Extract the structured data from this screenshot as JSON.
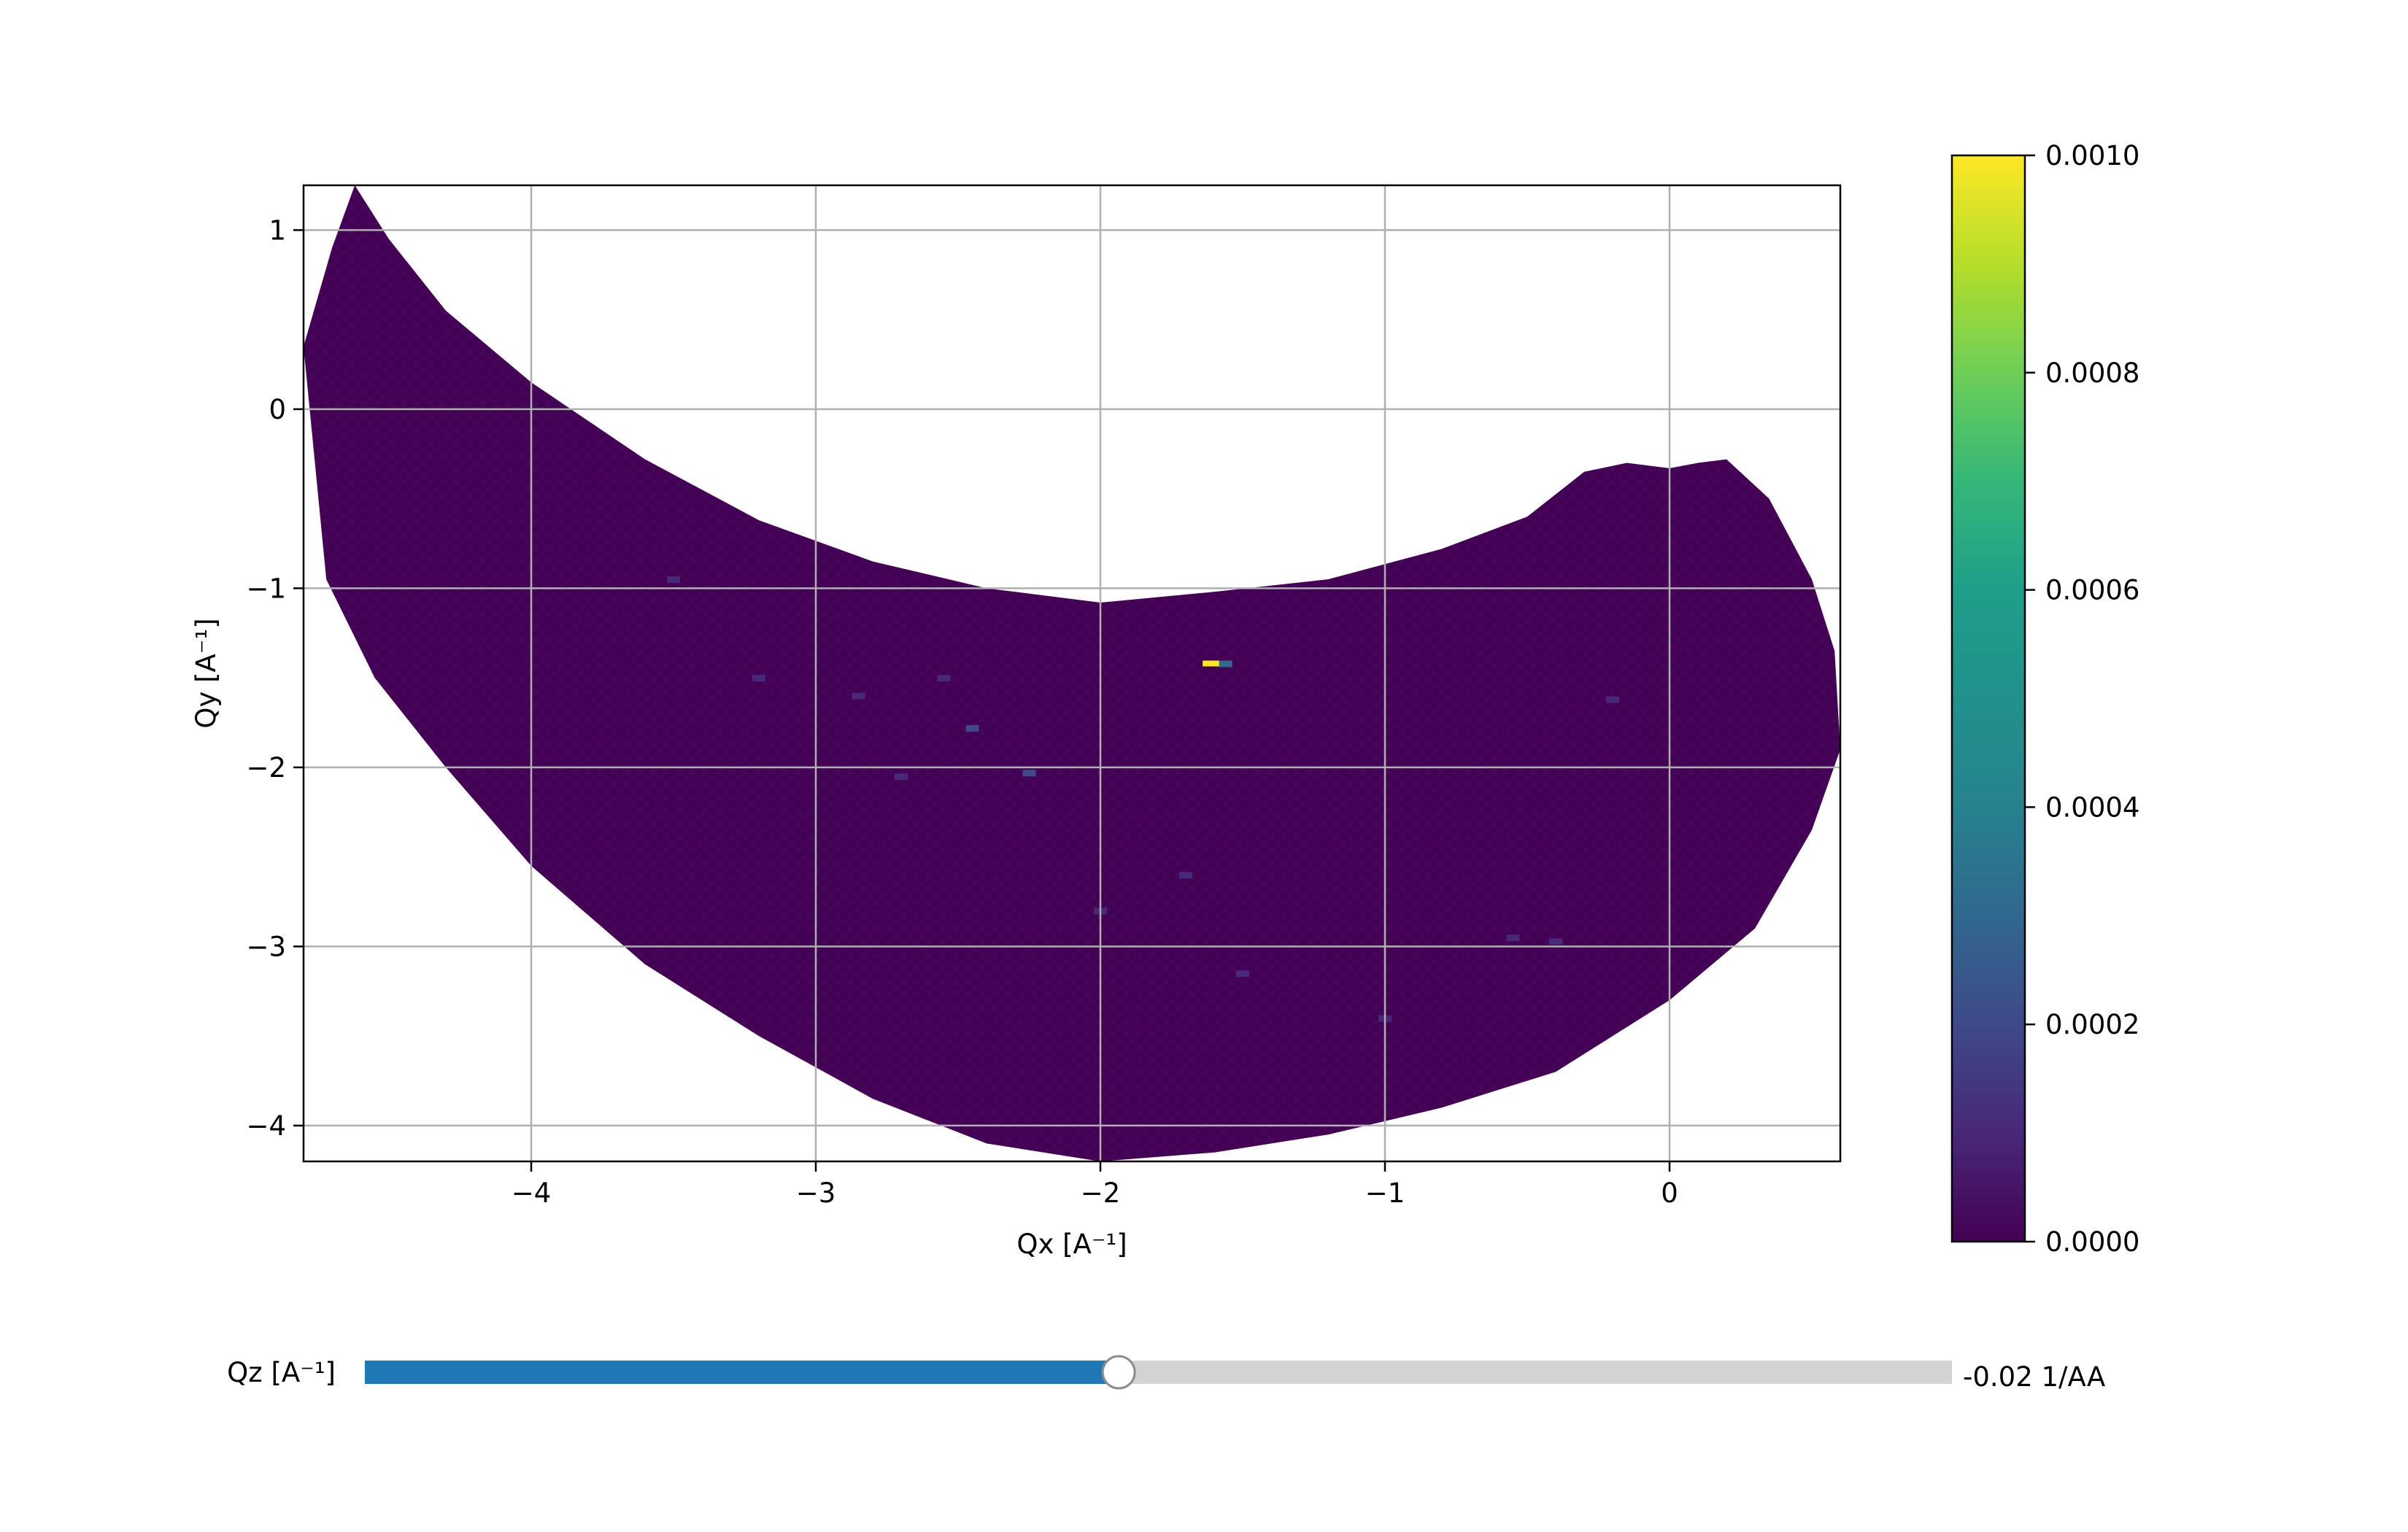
{
  "chart_data": {
    "type": "heatmap",
    "title": "",
    "xlabel": "Qx [A⁻¹]",
    "ylabel": "Qy [A⁻¹]",
    "xlim": [
      -4.8,
      0.6
    ],
    "ylim": [
      -4.2,
      1.25
    ],
    "x_ticks": [
      -4,
      -3,
      -2,
      -1,
      0
    ],
    "x_tick_labels": [
      "−4",
      "−3",
      "−2",
      "−1",
      "0"
    ],
    "y_ticks": [
      1,
      0,
      -1,
      -2,
      -3,
      -4
    ],
    "y_tick_labels": [
      "1",
      "0",
      "−1",
      "−2",
      "−3",
      "−4"
    ],
    "grid": true,
    "colormap": "viridis",
    "colorbar": {
      "range": [
        0.0,
        0.001
      ],
      "ticks": [
        0.0,
        0.0002,
        0.0004,
        0.0006,
        0.0008,
        0.001
      ],
      "tick_labels": [
        "0.0000",
        "0.0002",
        "0.0004",
        "0.0006",
        "0.0008",
        "0.0010"
      ]
    },
    "data_region": {
      "upper_boundary": [
        [
          -4.8,
          0.35
        ],
        [
          -4.7,
          0.9
        ],
        [
          -4.62,
          1.25
        ],
        [
          -4.5,
          0.95
        ],
        [
          -4.3,
          0.55
        ],
        [
          -4.0,
          0.15
        ],
        [
          -3.6,
          -0.28
        ],
        [
          -3.2,
          -0.62
        ],
        [
          -2.8,
          -0.85
        ],
        [
          -2.4,
          -1.0
        ],
        [
          -2.0,
          -1.08
        ],
        [
          -1.6,
          -1.02
        ],
        [
          -1.2,
          -0.95
        ],
        [
          -0.8,
          -0.78
        ],
        [
          -0.5,
          -0.6
        ],
        [
          -0.3,
          -0.35
        ],
        [
          -0.15,
          -0.3
        ],
        [
          0.0,
          -0.33
        ],
        [
          0.1,
          -0.3
        ],
        [
          0.2,
          -0.28
        ],
        [
          0.35,
          -0.5
        ],
        [
          0.5,
          -0.95
        ],
        [
          0.58,
          -1.35
        ],
        [
          0.6,
          -1.9
        ]
      ],
      "lower_boundary": [
        [
          -4.8,
          0.35
        ],
        [
          -4.72,
          -0.95
        ],
        [
          -4.55,
          -1.5
        ],
        [
          -4.3,
          -2.0
        ],
        [
          -4.0,
          -2.55
        ],
        [
          -3.6,
          -3.1
        ],
        [
          -3.2,
          -3.5
        ],
        [
          -2.8,
          -3.85
        ],
        [
          -2.4,
          -4.1
        ],
        [
          -2.0,
          -4.2
        ],
        [
          -1.6,
          -4.15
        ],
        [
          -1.2,
          -4.05
        ],
        [
          -0.8,
          -3.9
        ],
        [
          -0.4,
          -3.7
        ],
        [
          0.0,
          -3.3
        ],
        [
          0.3,
          -2.9
        ],
        [
          0.5,
          -2.35
        ],
        [
          0.6,
          -1.9
        ]
      ]
    },
    "background_value": 2e-05,
    "hot_pixels": [
      {
        "x": -1.61,
        "y": -1.42,
        "value": 0.001
      },
      {
        "x": -1.56,
        "y": -1.42,
        "value": 0.0003
      },
      {
        "x": -2.45,
        "y": -1.78,
        "value": 0.00015
      },
      {
        "x": -2.25,
        "y": -2.03,
        "value": 0.00015
      },
      {
        "x": -2.85,
        "y": -1.6,
        "value": 0.00012
      },
      {
        "x": -2.7,
        "y": -2.05,
        "value": 0.00012
      },
      {
        "x": -2.55,
        "y": -1.5,
        "value": 0.0001
      },
      {
        "x": -1.7,
        "y": -2.6,
        "value": 0.0001
      },
      {
        "x": -0.55,
        "y": -2.95,
        "value": 0.00013
      },
      {
        "x": -0.4,
        "y": -2.97,
        "value": 0.0001
      },
      {
        "x": -1.0,
        "y": -3.4,
        "value": 0.0001
      },
      {
        "x": -2.0,
        "y": -2.8,
        "value": 0.0001
      },
      {
        "x": -3.2,
        "y": -1.5,
        "value": 8e-05
      },
      {
        "x": -3.5,
        "y": -0.95,
        "value": 8e-05
      },
      {
        "x": -1.5,
        "y": -3.15,
        "value": 9e-05
      },
      {
        "x": -0.2,
        "y": -1.62,
        "value": 8e-05
      }
    ]
  },
  "slider": {
    "label": "Qz [A⁻¹]",
    "value": -0.02,
    "value_text": "-0.02 1/AA",
    "fraction": 0.475,
    "fill_color": "#1f77b4",
    "track_color": "#d3d3d3"
  }
}
